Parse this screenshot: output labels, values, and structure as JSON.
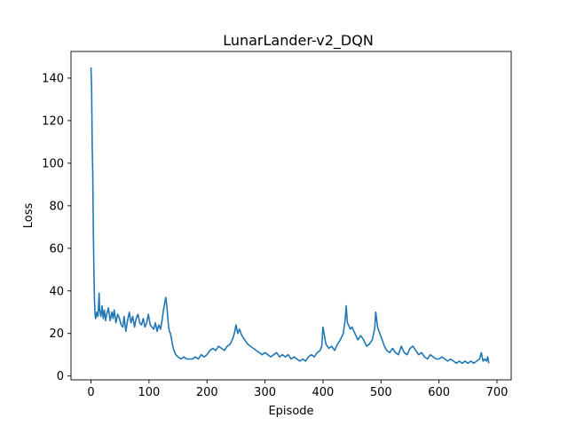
{
  "chart_data": {
    "type": "line",
    "title": "LunarLander-v2_DQN",
    "xlabel": "Episode",
    "ylabel": "Loss",
    "xlim": [
      -34.5,
      724.5
    ],
    "ylim": [
      -1.8,
      152.5
    ],
    "xticks": [
      0,
      100,
      200,
      300,
      400,
      500,
      600,
      700
    ],
    "yticks": [
      0,
      20,
      40,
      60,
      80,
      100,
      120,
      140
    ],
    "grid": false,
    "line_color": "#1f77b4",
    "series": [
      {
        "x": [
          0,
          1,
          2,
          3,
          4,
          5,
          6,
          7,
          8,
          9,
          10,
          12,
          14,
          15,
          17,
          19,
          21,
          23,
          25,
          27,
          30,
          33,
          36,
          38,
          40,
          43,
          46,
          49,
          52,
          55,
          57,
          60,
          63,
          66,
          69,
          72,
          75,
          78,
          81,
          84,
          87,
          90,
          93,
          96,
          99,
          102,
          105,
          108,
          111,
          114,
          117,
          120,
          123,
          125,
          127,
          129,
          131,
          133,
          135,
          137,
          139,
          141,
          143,
          146,
          150,
          155,
          160,
          165,
          170,
          175,
          180,
          185,
          190,
          195,
          200,
          205,
          210,
          215,
          220,
          225,
          230,
          235,
          240,
          245,
          248,
          250,
          253,
          256,
          260,
          265,
          270,
          275,
          280,
          285,
          290,
          295,
          300,
          305,
          310,
          315,
          320,
          325,
          330,
          335,
          340,
          345,
          350,
          355,
          360,
          365,
          370,
          375,
          380,
          385,
          390,
          395,
          398,
          400,
          405,
          410,
          415,
          420,
          425,
          430,
          435,
          438,
          440,
          442,
          444,
          447,
          450,
          455,
          460,
          465,
          470,
          475,
          480,
          485,
          489,
          491,
          494,
          498,
          502,
          506,
          510,
          515,
          520,
          525,
          530,
          535,
          540,
          545,
          550,
          555,
          560,
          565,
          570,
          575,
          580,
          585,
          590,
          595,
          600,
          605,
          610,
          615,
          620,
          625,
          630,
          635,
          640,
          645,
          650,
          655,
          660,
          665,
          670,
          673,
          676,
          679,
          682,
          684,
          686
        ],
        "y": [
          145,
          136,
          108,
          96,
          68,
          50,
          35,
          29,
          27,
          28,
          30,
          28,
          39,
          31,
          28,
          33,
          27,
          31,
          26,
          29,
          32,
          26,
          30,
          27,
          31,
          25,
          29,
          27,
          24,
          23,
          28,
          21,
          26,
          30,
          25,
          28,
          23,
          27,
          29,
          25,
          24,
          27,
          23,
          25,
          29,
          24,
          23,
          22,
          25,
          21,
          24,
          22,
          27,
          31,
          34,
          37,
          32,
          25,
          21,
          20,
          17,
          14,
          12,
          10,
          9,
          8,
          9,
          8,
          8,
          8,
          9,
          8,
          10,
          9,
          10,
          12,
          13,
          12,
          14,
          13,
          12,
          14,
          15,
          18,
          21,
          24,
          20,
          22,
          19,
          17,
          15,
          14,
          13,
          12,
          11,
          10,
          11,
          10,
          9,
          10,
          11,
          9,
          10,
          9,
          10,
          8,
          9,
          8,
          7,
          8,
          7,
          9,
          10,
          9,
          11,
          12,
          14,
          23,
          15,
          13,
          14,
          12,
          15,
          17,
          20,
          26,
          33,
          25,
          24,
          22,
          23,
          20,
          17,
          19,
          17,
          14,
          15,
          17,
          22,
          30,
          23,
          20,
          17,
          14,
          12,
          11,
          13,
          11,
          10,
          14,
          11,
          10,
          13,
          14,
          12,
          10,
          11,
          9,
          8,
          10,
          9,
          8,
          8,
          9,
          8,
          7,
          8,
          7,
          6,
          7,
          6,
          7,
          6,
          7,
          6,
          7,
          8,
          11,
          7,
          8,
          7,
          9,
          6
        ]
      }
    ]
  }
}
